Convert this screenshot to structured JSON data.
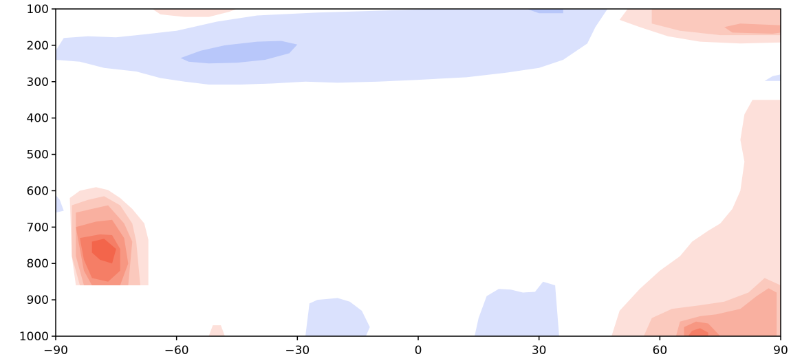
{
  "chart_data": {
    "type": "heatmap",
    "title": "",
    "xlabel": "",
    "ylabel": "",
    "xlim": [
      -90,
      90
    ],
    "ylim": [
      1000,
      100
    ],
    "y_axis_inverted": true,
    "grid": false,
    "legend": "none",
    "x_ticks": [
      -90,
      -60,
      -30,
      0,
      30,
      60,
      90
    ],
    "x_tick_labels": [
      "−90",
      "−60",
      "−30",
      "0",
      "30",
      "60",
      "90"
    ],
    "y_ticks": [
      100,
      200,
      300,
      400,
      500,
      600,
      700,
      800,
      900,
      1000
    ],
    "y_tick_labels": [
      "100",
      "200",
      "300",
      "400",
      "500",
      "600",
      "700",
      "800",
      "900",
      "1000"
    ],
    "colormap": "diverging blue-white-red",
    "colors": {
      "neg2": "#b8c7fa",
      "neg1": "#dae1fd",
      "pos1": "#fde0da",
      "pos2": "#fbc9bd",
      "pos3": "#f9b0a0",
      "pos4": "#f79782",
      "pos5": "#f57e66",
      "pos6": "#f3654b"
    },
    "regions": [
      {
        "level": "neg1",
        "points": [
          [
            -90,
            215
          ],
          [
            -88,
            180
          ],
          [
            -82,
            175
          ],
          [
            -75,
            178
          ],
          [
            -68,
            170
          ],
          [
            -60,
            160
          ],
          [
            -50,
            135
          ],
          [
            -40,
            118
          ],
          [
            -25,
            110
          ],
          [
            -10,
            105
          ],
          [
            5,
            100
          ],
          [
            15,
            100
          ],
          [
            25,
            100
          ],
          [
            35,
            100
          ],
          [
            45,
            100
          ],
          [
            47,
            100
          ],
          [
            44,
            150
          ],
          [
            42,
            195
          ],
          [
            36,
            240
          ],
          [
            30,
            262
          ],
          [
            22,
            275
          ],
          [
            12,
            288
          ],
          [
            0,
            295
          ],
          [
            -10,
            300
          ],
          [
            -20,
            303
          ],
          [
            -28,
            300
          ],
          [
            -36,
            305
          ],
          [
            -44,
            308
          ],
          [
            -52,
            308
          ],
          [
            -58,
            300
          ],
          [
            -64,
            290
          ],
          [
            -70,
            272
          ],
          [
            -78,
            262
          ],
          [
            -84,
            245
          ],
          [
            -90,
            240
          ]
        ]
      },
      {
        "level": "neg2",
        "points": [
          [
            -59,
            235
          ],
          [
            -54,
            215
          ],
          [
            -48,
            200
          ],
          [
            -40,
            190
          ],
          [
            -34,
            188
          ],
          [
            -30,
            198
          ],
          [
            -32,
            222
          ],
          [
            -38,
            240
          ],
          [
            -45,
            248
          ],
          [
            -52,
            250
          ],
          [
            -57,
            245
          ]
        ]
      },
      {
        "level": "neg2",
        "points": [
          [
            27,
            100
          ],
          [
            30,
            112
          ],
          [
            36,
            112
          ],
          [
            36,
            100
          ]
        ]
      },
      {
        "level": "neg1",
        "points": [
          [
            88,
            285
          ],
          [
            90,
            280
          ],
          [
            90,
            298
          ],
          [
            86,
            298
          ]
        ]
      },
      {
        "level": "neg1",
        "points": [
          [
            -90,
            612
          ],
          [
            -89,
            625
          ],
          [
            -88,
            655
          ],
          [
            -90,
            660
          ]
        ]
      },
      {
        "level": "pos1",
        "points": [
          [
            -66,
            100
          ],
          [
            -64,
            115
          ],
          [
            -58,
            122
          ],
          [
            -52,
            122
          ],
          [
            -47,
            108
          ],
          [
            -45,
            100
          ]
        ]
      },
      {
        "level": "pos1",
        "points": [
          [
            52,
            100
          ],
          [
            50,
            130
          ],
          [
            55,
            150
          ],
          [
            62,
            175
          ],
          [
            70,
            190
          ],
          [
            80,
            195
          ],
          [
            90,
            192
          ],
          [
            90,
            100
          ]
        ]
      },
      {
        "level": "pos2",
        "points": [
          [
            58,
            100
          ],
          [
            58,
            140
          ],
          [
            65,
            160
          ],
          [
            75,
            172
          ],
          [
            90,
            172
          ],
          [
            90,
            100
          ]
        ]
      },
      {
        "level": "pos3",
        "points": [
          [
            76,
            150
          ],
          [
            78,
            165
          ],
          [
            88,
            168
          ],
          [
            90,
            165
          ],
          [
            90,
            145
          ],
          [
            80,
            140
          ]
        ]
      },
      {
        "level": "pos1",
        "points": [
          [
            83,
            350
          ],
          [
            90,
            350
          ],
          [
            90,
            1000
          ],
          [
            48,
            1000
          ],
          [
            50,
            930
          ],
          [
            55,
            870
          ],
          [
            60,
            820
          ],
          [
            65,
            780
          ],
          [
            68,
            740
          ],
          [
            72,
            710
          ],
          [
            75,
            690
          ],
          [
            78,
            650
          ],
          [
            80,
            600
          ],
          [
            81,
            520
          ],
          [
            80,
            460
          ],
          [
            81,
            390
          ]
        ]
      },
      {
        "level": "pos2",
        "points": [
          [
            56,
            1000
          ],
          [
            58,
            950
          ],
          [
            63,
            925
          ],
          [
            70,
            915
          ],
          [
            76,
            905
          ],
          [
            82,
            880
          ],
          [
            86,
            840
          ],
          [
            90,
            860
          ],
          [
            90,
            1000
          ]
        ]
      },
      {
        "level": "pos3",
        "points": [
          [
            64,
            1000
          ],
          [
            65,
            960
          ],
          [
            70,
            945
          ],
          [
            74,
            940
          ],
          [
            80,
            925
          ],
          [
            84,
            890
          ],
          [
            87,
            868
          ],
          [
            89,
            880
          ],
          [
            89,
            1000
          ]
        ]
      },
      {
        "level": "pos4",
        "points": [
          [
            66,
            1000
          ],
          [
            66,
            975
          ],
          [
            69,
            960
          ],
          [
            72,
            965
          ],
          [
            75,
            1000
          ]
        ]
      },
      {
        "level": "pos5",
        "points": [
          [
            67,
            1000
          ],
          [
            68,
            985
          ],
          [
            70,
            978
          ],
          [
            72,
            990
          ],
          [
            72,
            1000
          ]
        ]
      },
      {
        "level": "pos1",
        "points": [
          [
            -86.5,
            620
          ],
          [
            -84,
            600
          ],
          [
            -80,
            590
          ],
          [
            -77,
            598
          ],
          [
            -74,
            620
          ],
          [
            -71,
            650
          ],
          [
            -68,
            690
          ],
          [
            -67,
            735
          ],
          [
            -67,
            860
          ],
          [
            -85,
            860
          ],
          [
            -86,
            780
          ]
        ]
      },
      {
        "level": "pos2",
        "points": [
          [
            -86,
            640
          ],
          [
            -82,
            625
          ],
          [
            -78,
            615
          ],
          [
            -74,
            640
          ],
          [
            -71,
            690
          ],
          [
            -70,
            740
          ],
          [
            -69,
            860
          ],
          [
            -84,
            860
          ],
          [
            -86,
            780
          ]
        ]
      },
      {
        "level": "pos3",
        "points": [
          [
            -85,
            660
          ],
          [
            -81,
            650
          ],
          [
            -77,
            640
          ],
          [
            -73,
            690
          ],
          [
            -71,
            740
          ],
          [
            -72,
            860
          ],
          [
            -83,
            860
          ],
          [
            -85,
            780
          ]
        ]
      },
      {
        "level": "pos4",
        "points": [
          [
            -85,
            700
          ],
          [
            -80,
            685
          ],
          [
            -76,
            680
          ],
          [
            -73,
            730
          ],
          [
            -72,
            800
          ],
          [
            -74,
            860
          ],
          [
            -81,
            860
          ],
          [
            -83,
            820
          ]
        ]
      },
      {
        "level": "pos5",
        "points": [
          [
            -84,
            730
          ],
          [
            -79,
            720
          ],
          [
            -76,
            722
          ],
          [
            -74,
            760
          ],
          [
            -74,
            820
          ],
          [
            -77,
            850
          ],
          [
            -81,
            840
          ],
          [
            -83,
            790
          ]
        ]
      },
      {
        "level": "pos6",
        "points": [
          [
            -81,
            740
          ],
          [
            -78,
            732
          ],
          [
            -75,
            760
          ],
          [
            -76,
            800
          ],
          [
            -79,
            790
          ],
          [
            -81,
            770
          ]
        ]
      },
      {
        "level": "neg1",
        "points": [
          [
            -28,
            1000
          ],
          [
            -27,
            910
          ],
          [
            -25,
            900
          ],
          [
            -20,
            895
          ],
          [
            -17,
            905
          ],
          [
            -14,
            930
          ],
          [
            -12,
            975
          ],
          [
            -13,
            1000
          ]
        ]
      },
      {
        "level": "neg1",
        "points": [
          [
            14,
            1000
          ],
          [
            15,
            950
          ],
          [
            17,
            890
          ],
          [
            20,
            870
          ],
          [
            23,
            872
          ],
          [
            26,
            880
          ],
          [
            29,
            878
          ],
          [
            31,
            850
          ],
          [
            34,
            860
          ],
          [
            35,
            1000
          ]
        ]
      },
      {
        "level": "pos1",
        "points": [
          [
            -52,
            1000
          ],
          [
            -51,
            970
          ],
          [
            -49,
            970
          ],
          [
            -48,
            1000
          ]
        ]
      }
    ]
  }
}
